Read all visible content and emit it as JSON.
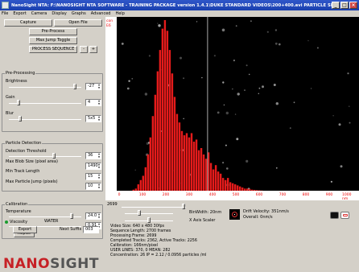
{
  "window": {
    "title": "NanoSight NTA: F:\\NANOSIGHT NTA SOFTWARE - TRAINING PACKAGE version 1.4.1\\DUKE STANDARD VIDEOS\\200+400.avi   PARTICLE SIZE: 206"
  },
  "menu": [
    "File",
    "Export",
    "Camera",
    "Display",
    "Graphs",
    "Advanced",
    "Help"
  ],
  "controls": {
    "capture": "Capture",
    "open_file": "Open File",
    "pre_process": "Pre-Process",
    "max_jump_toggle": "Max Jump Toggle",
    "process_sequence": "PROCESS SEQUENCE",
    "stop": "-",
    "plus": "+"
  },
  "preprocessing": {
    "title": "Pre-Processing",
    "brightness_label": "Brightness",
    "brightness_value": "-27",
    "gain_label": "Gain",
    "gain_value": "4",
    "blur_label": "Blur",
    "blur_value": "5x5"
  },
  "detection": {
    "title": "Particle Detection",
    "threshold_label": "Detection Threshold",
    "threshold_value": "36",
    "blob_label": "Max Blob Size (pixel area)",
    "blob_value": "1490",
    "track_label": "Min Track Length",
    "track_value": "15",
    "jump_label": "Max Particle Jump (pixels)",
    "jump_value": "10"
  },
  "calibration": {
    "title": "Calibration",
    "temperature_label": "Temperature",
    "temperature_value": "24.0",
    "viscosity_label": "Viscosity",
    "viscosity_liquid": "WATER",
    "viscosity_value": "0.91",
    "replot": "Replot"
  },
  "export_area": {
    "export": "Export",
    "next_suffix_label": "Next Suffix",
    "next_suffix_value": "003"
  },
  "logo": {
    "part1": "NANO",
    "part2": "SIGHT"
  },
  "chart_data": {
    "type": "bar",
    "ylabel": "con E6",
    "ylim": [
      0,
      8
    ],
    "yticks": [
      "con",
      "E6"
    ],
    "xlabel": "nm",
    "xlim": [
      0,
      1000
    ],
    "xticks": [
      "0",
      "100",
      "200",
      "300",
      "400",
      "500",
      "600",
      "700",
      "800",
      "900",
      "1000 nm"
    ],
    "x": [
      70,
      80,
      90,
      100,
      110,
      120,
      130,
      140,
      150,
      160,
      170,
      180,
      190,
      200,
      210,
      220,
      230,
      240,
      250,
      260,
      270,
      280,
      290,
      300,
      310,
      320,
      330,
      340,
      350,
      360,
      370,
      380,
      390,
      400,
      410,
      420,
      430,
      440,
      450,
      460,
      470,
      480,
      490,
      500,
      510,
      520,
      530,
      540,
      550,
      560,
      570,
      580,
      590,
      600
    ],
    "values": [
      0.05,
      0.1,
      0.3,
      0.5,
      0.7,
      1.1,
      1.7,
      2.5,
      3.5,
      4.5,
      5.6,
      6.6,
      7.6,
      8.0,
      7.5,
      6.6,
      5.5,
      4.4,
      3.6,
      3.2,
      2.8,
      2.6,
      2.7,
      2.5,
      2.7,
      2.3,
      2.4,
      1.9,
      2.0,
      1.7,
      1.5,
      1.8,
      1.3,
      1.0,
      1.2,
      0.9,
      0.8,
      0.6,
      0.5,
      0.6,
      0.4,
      0.35,
      0.3,
      0.25,
      0.2,
      0.15,
      0.1,
      0.1,
      0.08,
      0.05,
      0.04,
      0.03,
      0.02,
      0.01
    ],
    "marker_x": 375,
    "bar_color": "#e51b1b"
  },
  "below_chart": {
    "frame": "2699",
    "bin_width": "BinWidth: 20nm",
    "x_axis_scaler": "X Axis Scaler",
    "drift_velocity": "Drift Velocity: 351nm/s",
    "overall": "Overall: 0nm/s"
  },
  "video_info": [
    "Video Size: 640 x 480 30fps",
    "Sequence Length: 2700 frames",
    "Processing Frame: 2699",
    "Completed Tracks: 2362, Active Tracks: 2256",
    "Calibration: 166nm/pixel",
    "USER LINES: 370, 0  MEAN: 282",
    "Concentration: 26 IP = 2.12 / 0.0956 particles /ml"
  ]
}
